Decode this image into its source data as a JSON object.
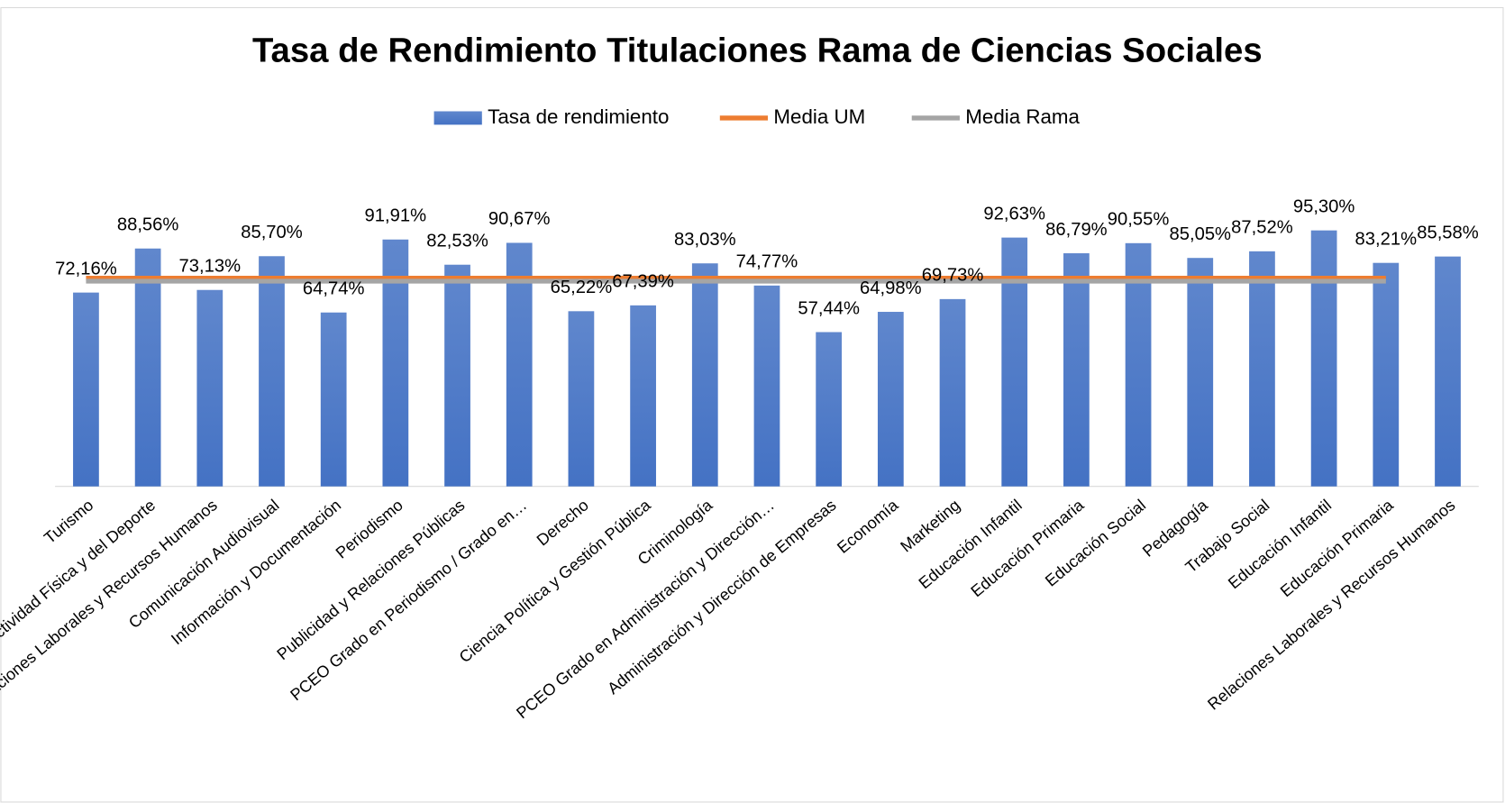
{
  "chart_data": {
    "type": "bar",
    "title": "Tasa de Rendimiento Titulaciones Rama de Ciencias Sociales",
    "categories": [
      "Turismo",
      "Ciencias de la Actividad Física y del Deporte",
      "Relaciones Laborales y Recursos Humanos",
      "Comunicación Audiovisual",
      "Información y Documentación",
      "Periodismo",
      "Publicidad y Relaciones Públicas",
      "PCEO Grado en Periodismo / Grado en…",
      "Derecho",
      "Ciencia Política y Gestión Pública",
      "Criminología",
      "PCEO Grado en Administración y Dirección…",
      "Administración y Dirección de Empresas",
      "Economía",
      "Marketing",
      "Educación Infantil",
      "Educación Primaria",
      "Educación Social",
      "Pedagogía",
      "Trabajo Social",
      "Educación Infantil",
      "Educación Primaria",
      "Relaciones Laborales y Recursos Humanos"
    ],
    "series": [
      {
        "name": "Tasa de rendimiento",
        "type": "bar",
        "color": "#4472c4",
        "values": [
          72.16,
          88.56,
          73.13,
          85.7,
          64.74,
          91.91,
          82.53,
          90.67,
          65.22,
          67.39,
          83.03,
          74.77,
          57.44,
          64.98,
          69.73,
          92.63,
          86.79,
          90.55,
          85.05,
          87.52,
          95.3,
          83.21,
          85.58
        ],
        "value_labels": [
          "72,16%",
          "88,56%",
          "73,13%",
          "85,70%",
          "64,74%",
          "91,91%",
          "82,53%",
          "90,67%",
          "65,22%",
          "67,39%",
          "83,03%",
          "74,77%",
          "57,44%",
          "64,98%",
          "69,73%",
          "92,63%",
          "86,79%",
          "90,55%",
          "85,05%",
          "87,52%",
          "95,30%",
          "83,21%",
          "85,58%"
        ]
      },
      {
        "name": "Media UM",
        "type": "line",
        "color": "#ed7d31",
        "values": [
          77.5,
          77.5,
          77.5,
          77.5,
          77.5,
          77.5,
          77.5,
          77.5,
          77.5,
          77.5,
          77.5,
          77.5,
          77.5,
          77.5,
          77.5,
          77.5,
          77.5,
          77.5,
          77.5,
          77.5,
          77.5,
          77.5,
          null
        ]
      },
      {
        "name": "Media Rama",
        "type": "line",
        "color": "#a5a5a5",
        "values": [
          76.4,
          76.4,
          76.4,
          76.4,
          76.4,
          76.4,
          76.4,
          76.4,
          76.4,
          76.4,
          76.4,
          76.4,
          76.4,
          76.4,
          76.4,
          76.4,
          76.4,
          76.4,
          76.4,
          76.4,
          76.4,
          76.4,
          null
        ]
      }
    ],
    "ylim": [
      0,
      100
    ],
    "legend": "top"
  }
}
